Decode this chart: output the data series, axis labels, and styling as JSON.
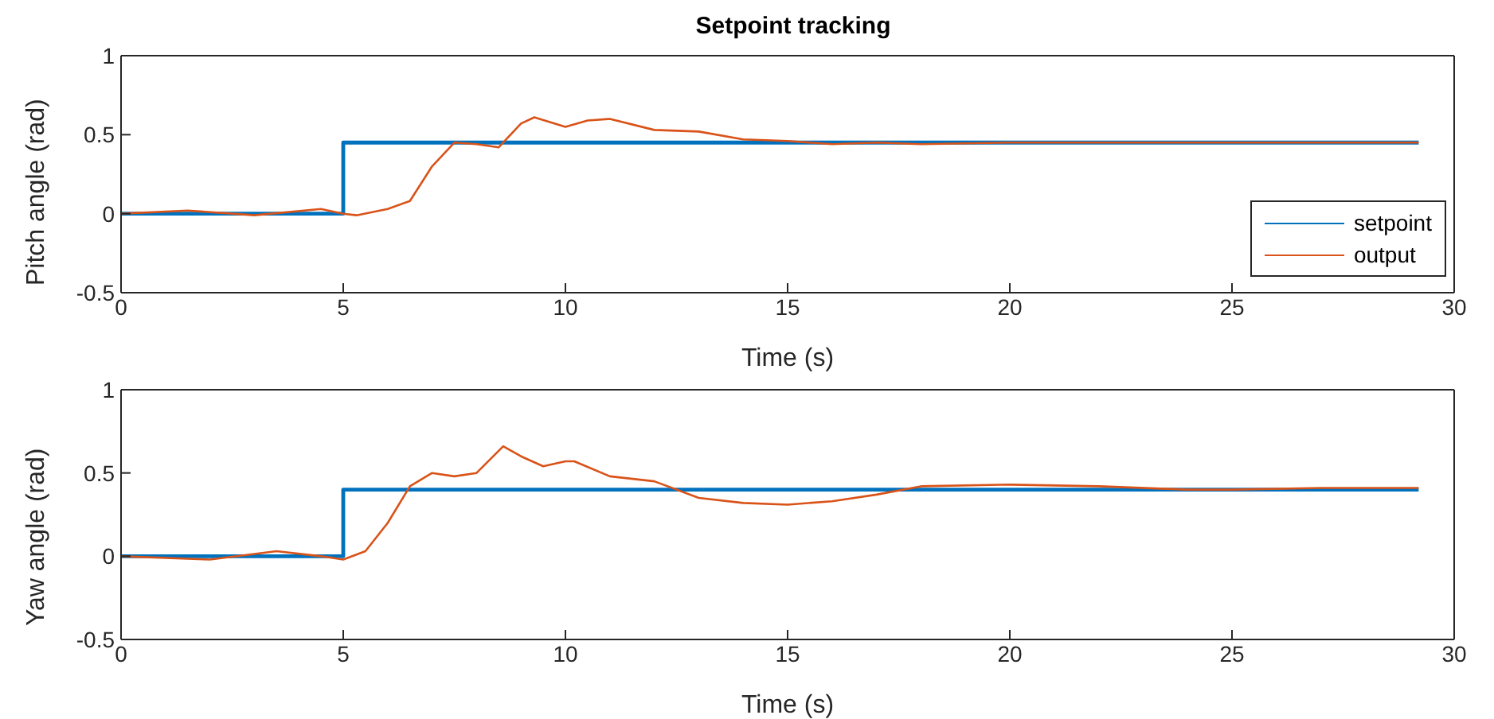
{
  "chart_data": [
    {
      "type": "line",
      "title": "Setpoint tracking",
      "xlabel": "Time (s)",
      "ylabel": "Pitch angle (rad)",
      "xlim": [
        0,
        30
      ],
      "xticks": [
        0,
        5,
        10,
        15,
        20,
        25,
        30
      ],
      "ylim": [
        -0.5,
        1
      ],
      "yticks": [
        -0.5,
        0,
        0.5,
        1
      ],
      "grid": false,
      "legend": "bottom right",
      "series": [
        {
          "name": "setpoint",
          "type": "step",
          "color": "#0072bd",
          "x": [
            0,
            5,
            29.2
          ],
          "values": [
            0,
            0.45,
            0.45
          ]
        },
        {
          "name": "output",
          "color": "#d95319",
          "x": [
            0,
            1.5,
            3,
            4.5,
            5,
            5.3,
            6,
            6.5,
            7,
            7.5,
            8,
            8.5,
            9,
            9.3,
            10,
            10.5,
            11,
            12,
            13,
            14,
            15,
            16,
            17,
            18,
            20,
            25,
            29.2
          ],
          "values": [
            0,
            0.02,
            -0.01,
            0.03,
            0,
            -0.01,
            0.03,
            0.08,
            0.3,
            0.45,
            0.44,
            0.42,
            0.57,
            0.61,
            0.55,
            0.59,
            0.6,
            0.53,
            0.52,
            0.47,
            0.46,
            0.44,
            0.45,
            0.44,
            0.45,
            0.45,
            0.45
          ]
        }
      ]
    },
    {
      "type": "line",
      "xlabel": "Time (s)",
      "ylabel": "Yaw angle (rad)",
      "xlim": [
        0,
        30
      ],
      "xticks": [
        0,
        5,
        10,
        15,
        20,
        25,
        30
      ],
      "ylim": [
        -0.5,
        1
      ],
      "yticks": [
        -0.5,
        0,
        0.5,
        1
      ],
      "grid": false,
      "series": [
        {
          "type": "step",
          "color": "#0072bd",
          "x": [
            0,
            5,
            29.2
          ],
          "values": [
            0,
            0.4,
            0.4
          ]
        },
        {
          "color": "#d95319",
          "x": [
            0,
            2,
            3.5,
            4.5,
            5,
            5.5,
            6,
            6.5,
            7,
            7.5,
            8,
            8.6,
            9,
            9.5,
            10,
            10.2,
            11,
            12,
            13,
            14,
            15,
            16,
            17,
            18,
            20,
            22,
            24,
            25,
            27,
            29.2
          ],
          "values": [
            0,
            -0.02,
            0.03,
            0,
            -0.02,
            0.03,
            0.2,
            0.42,
            0.5,
            0.48,
            0.5,
            0.66,
            0.6,
            0.54,
            0.57,
            0.57,
            0.48,
            0.45,
            0.35,
            0.32,
            0.31,
            0.33,
            0.37,
            0.42,
            0.43,
            0.42,
            0.4,
            0.4,
            0.41,
            0.41
          ]
        }
      ]
    }
  ]
}
